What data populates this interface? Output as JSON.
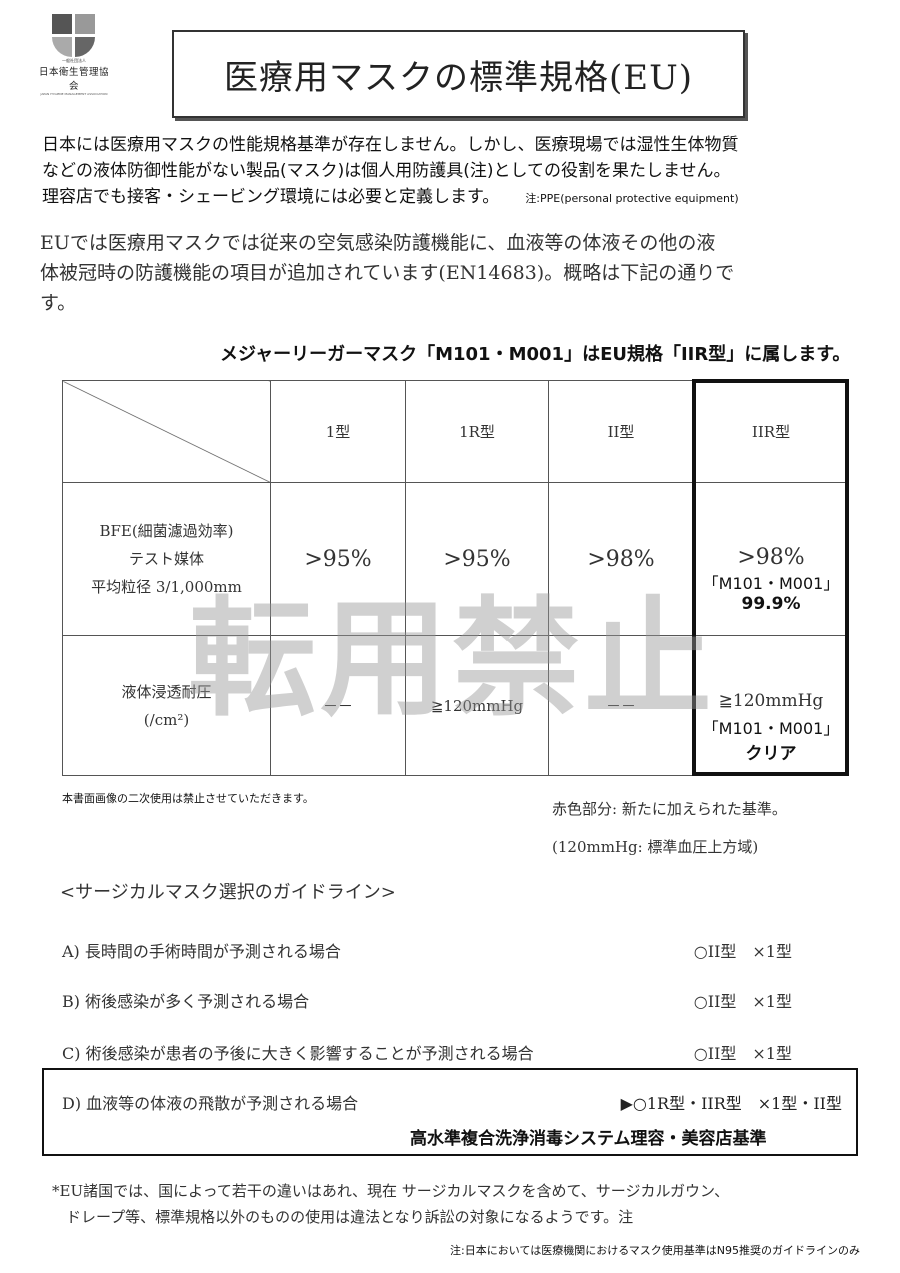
{
  "logo": {
    "sub": "一般社団法人",
    "name": "日本衛生管理協会",
    "english": "JAPAN HYGIENE MANAGEMENT ASSOCIATION"
  },
  "title": "医療用マスクの標準規格(EU)",
  "intro": {
    "lines": [
      "日本には医療用マスクの性能規格基準が存在しません。しかし、医療現場では湿性生体物質",
      "などの液体防御性能がない製品(マスク)は個人用防護具(注)としての役割を果たしません。",
      "理容店でも接客・シェービング環境には必要と定義します。"
    ],
    "note": "注:PPE(personal protective equipment)"
  },
  "scan_paragraph": [
    "EUでは医療用マスクでは従来の空気感染防護機能に、血液等の体液その他の液",
    "体被冠時の防護機能の項目が追加されています(EN14683)。概略は下記の通りで",
    "す。"
  ],
  "highlight_line": "メジャーリーガーマスク「M101・M001」はEU規格「IIR型」に属します。",
  "table": {
    "headers": [
      "1型",
      "1R型",
      "II型",
      "IIR型"
    ],
    "rows": [
      {
        "label": [
          "BFE(細菌濾過効率)",
          "テスト媒体",
          "平均粒径 3/1,000mm"
        ],
        "cells": [
          ">95%",
          ">95%",
          ">98%",
          ">98%"
        ],
        "product": "「M101・M001」",
        "product_value": "99.9%"
      },
      {
        "label": [
          "液体浸透耐圧",
          "(/cm²)"
        ],
        "cells": [
          "－－",
          "≧120mmHg",
          "－－",
          "≧120mmHg"
        ],
        "product": "「M101・M001」",
        "product_value": "クリア"
      }
    ]
  },
  "watermark": "転用禁止",
  "image_note": "本書面画像の二次使用は禁止させていただきます。",
  "legend": [
    "赤色部分: 新たに加えられた基準。",
    "(120mmHg: 標準血圧上方域)"
  ],
  "guideline": {
    "heading": "<サージカルマスク選択のガイドライン>",
    "items": [
      {
        "text": "A) 長時間の手術時間が予測される場合",
        "rec": "○II型　×1型"
      },
      {
        "text": "B) 術後感染が多く予測される場合",
        "rec": "○II型　×1型"
      },
      {
        "text": "C) 術後感染が患者の予後に大きく影響することが予測される場合",
        "rec": "○II型　×1型"
      },
      {
        "text": "D) 血液等の体液の飛散が予測される場合",
        "rec": "▶○1R型・IIR型　×1型・II型"
      }
    ],
    "standard": "高水準複合洗浄消毒システム理容・美容店基準"
  },
  "footer": [
    "*EU諸国では、国によって若干の違いはあれ、現在 サージカルマスクを含めて、サージカルガウン、",
    "ドレープ等、標準規格以外のものの使用は違法となり訴訟の対象になるようです。注"
  ],
  "footer_note": "注:日本においては医療機関におけるマスク使用基準はN95推奨のガイドラインのみ"
}
